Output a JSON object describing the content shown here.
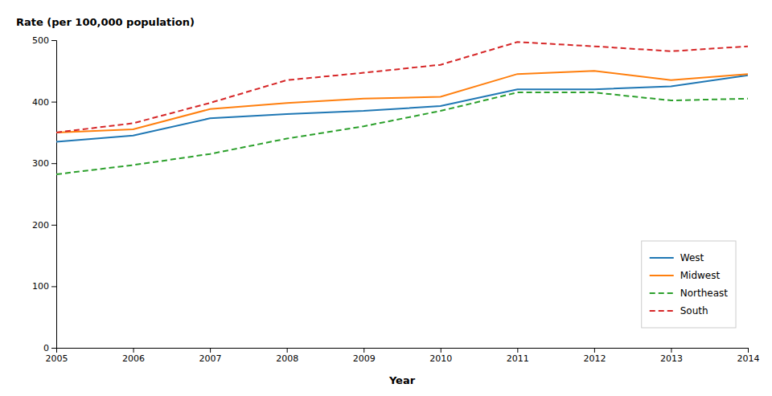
{
  "chart_data": {
    "type": "line",
    "xlabel": "Year",
    "ylabel": "Rate (per 100,000 population)",
    "x": [
      2005,
      2006,
      2007,
      2008,
      2009,
      2010,
      2011,
      2012,
      2013,
      2014
    ],
    "xlim": [
      2005,
      2014
    ],
    "xticks": [
      2005,
      2006,
      2007,
      2008,
      2009,
      2010,
      2011,
      2012,
      2013,
      2014
    ],
    "ylim": [
      0,
      500
    ],
    "yticks": [
      0,
      100,
      200,
      300,
      400,
      500
    ],
    "grid": false,
    "legend": "lower right",
    "series": [
      {
        "name": "West",
        "line_style": "solid",
        "values": [
          335,
          345,
          373,
          380,
          385,
          393,
          420,
          420,
          425,
          443
        ]
      },
      {
        "name": "Midwest",
        "line_style": "solid",
        "values": [
          350,
          355,
          388,
          398,
          405,
          408,
          445,
          450,
          435,
          445
        ]
      },
      {
        "name": "Northeast",
        "line_style": "dashed",
        "values": [
          282,
          297,
          315,
          340,
          360,
          385,
          415,
          415,
          402,
          405
        ]
      },
      {
        "name": "South",
        "line_style": "dashed",
        "values": [
          350,
          365,
          398,
          435,
          447,
          460,
          497,
          490,
          482,
          490
        ]
      }
    ]
  }
}
